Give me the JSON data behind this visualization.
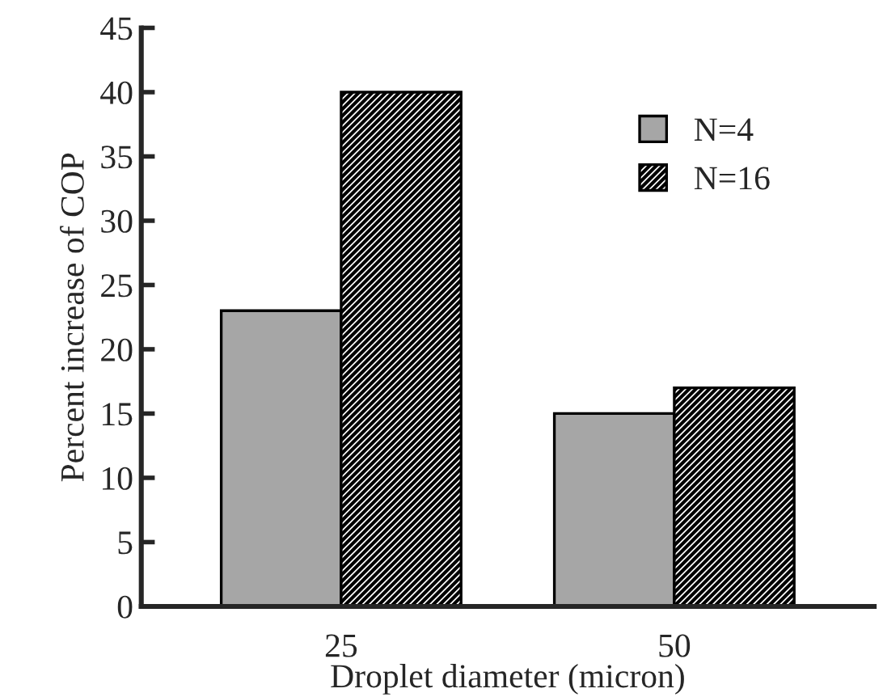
{
  "chart_data": {
    "type": "bar",
    "xlabel": "Droplet diameter (micron)",
    "ylabel": "Percent increase of COP",
    "categories": [
      "25",
      "50"
    ],
    "series": [
      {
        "name": "N=4",
        "color": "#a6a6a6",
        "values": [
          23,
          15
        ]
      },
      {
        "name": "N=16",
        "color": "#000000",
        "values": [
          40,
          17
        ]
      }
    ],
    "ylim": [
      0,
      45
    ],
    "yticks": [
      0,
      5,
      10,
      15,
      20,
      25,
      30,
      35,
      40,
      45
    ],
    "grid": false,
    "legend": "top right"
  }
}
